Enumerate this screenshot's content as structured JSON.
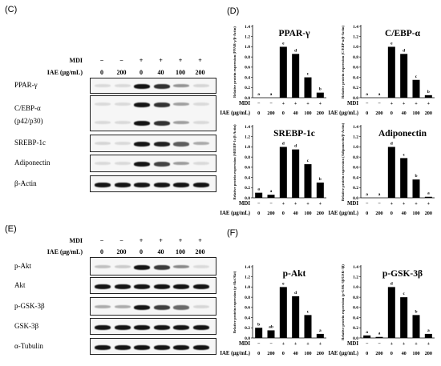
{
  "panels": {
    "c": {
      "letter": "(C)",
      "mdi_label": "MDI",
      "iae_label": "IAE (μg/mL)",
      "mdi": [
        "−",
        "−",
        "+",
        "+",
        "+",
        "+"
      ],
      "iae": [
        "0",
        "200",
        "0",
        "40",
        "100",
        "200"
      ],
      "rows": [
        {
          "label": "PPAR-γ",
          "levels": [
            0,
            0,
            1.0,
            0.86,
            0.4,
            0.1
          ]
        },
        {
          "label": "C/EBP-α",
          "sublabel": "(p42/p30)",
          "levels": [
            0,
            0,
            1.0,
            0.86,
            0.35,
            0.05
          ]
        },
        {
          "label": "SREBP-1c",
          "levels": [
            0.1,
            0.06,
            1.0,
            0.95,
            0.66,
            0.3
          ]
        },
        {
          "label": "Adiponectin",
          "levels": [
            0.02,
            0.02,
            1.0,
            0.78,
            0.36,
            0.02
          ]
        },
        {
          "label": "β-Actin",
          "levels": [
            1,
            1,
            1,
            1,
            1,
            1
          ]
        }
      ]
    },
    "d": {
      "letter": "(D)"
    },
    "e": {
      "letter": "(E)",
      "mdi_label": "MDI",
      "iae_label": "IAE (μg/mL)",
      "mdi": [
        "−",
        "−",
        "+",
        "+",
        "+",
        "+"
      ],
      "iae": [
        "0",
        "200",
        "0",
        "40",
        "100",
        "200"
      ],
      "rows": [
        {
          "label": "p-Akt",
          "levels": [
            0.2,
            0.15,
            1.0,
            0.82,
            0.45,
            0.08
          ]
        },
        {
          "label": "Akt",
          "levels": [
            1,
            1,
            1,
            1,
            1,
            1
          ]
        },
        {
          "label": "p-GSK-3β",
          "levels": [
            0.3,
            0.3,
            1.0,
            0.8,
            0.6,
            0.1
          ]
        },
        {
          "label": "GSK-3β",
          "levels": [
            1,
            1,
            1,
            1,
            1,
            1
          ]
        },
        {
          "label": "α-Tubulin",
          "levels": [
            1,
            1,
            1,
            1,
            1,
            1
          ]
        }
      ]
    },
    "f": {
      "letter": "(F)"
    }
  },
  "chart_data": [
    {
      "type": "bar",
      "panel": "D",
      "title": "PPAR-γ",
      "ylabel": "Relative protein expression (PPAR-γ/β-Actin)",
      "ylim": [
        0,
        1.4
      ],
      "yticks": [
        "0.0",
        "0.2",
        "0.4",
        "0.6",
        "0.8",
        "1.0",
        "1.2",
        "1.4"
      ],
      "values": [
        0.0,
        0.0,
        1.0,
        0.86,
        0.4,
        0.1
      ],
      "letters": [
        "a",
        "a",
        "e",
        "d",
        "c",
        "b"
      ],
      "mdi": [
        "−",
        "−",
        "+",
        "+",
        "+",
        "+"
      ],
      "iae": [
        "0",
        "200",
        "0",
        "40",
        "100",
        "200"
      ],
      "mdi_label": "MDI",
      "iae_label": "IAE (μg/mL)"
    },
    {
      "type": "bar",
      "panel": "D",
      "title": "C/EBP-α",
      "ylabel": "Relative protein expression (C/EBP-α/β-Actin)",
      "ylim": [
        0,
        1.4
      ],
      "yticks": [
        "0.0",
        "0.2",
        "0.4",
        "0.6",
        "0.8",
        "1.0",
        "1.2",
        "1.4"
      ],
      "values": [
        0.0,
        0.0,
        1.0,
        0.86,
        0.35,
        0.05
      ],
      "letters": [
        "a",
        "a",
        "e",
        "d",
        "c",
        "b"
      ],
      "mdi": [
        "−",
        "−",
        "+",
        "+",
        "+",
        "+"
      ],
      "iae": [
        "0",
        "200",
        "0",
        "40",
        "100",
        "200"
      ],
      "mdi_label": "MDI",
      "iae_label": "IAE (μg/mL)"
    },
    {
      "type": "bar",
      "panel": "D",
      "title": "SREBP-1c",
      "ylabel": "Relative protein expression (SREBP-1c/β-Actin)",
      "ylim": [
        0,
        1.4
      ],
      "yticks": [
        "0.0",
        "0.2",
        "0.4",
        "0.6",
        "0.8",
        "1.0",
        "1.2",
        "1.4"
      ],
      "values": [
        0.1,
        0.06,
        1.0,
        0.95,
        0.66,
        0.3
      ],
      "letters": [
        "a",
        "a",
        "d",
        "d",
        "c",
        "b"
      ],
      "mdi": [
        "−",
        "−",
        "+",
        "+",
        "+",
        "+"
      ],
      "iae": [
        "0",
        "200",
        "0",
        "40",
        "100",
        "200"
      ],
      "mdi_label": "MDI",
      "iae_label": "IAE (μg/mL)"
    },
    {
      "type": "bar",
      "panel": "D",
      "title": "Adiponectin",
      "ylabel": "Relative protein expression (Adiponectin/β-Actin)",
      "ylim": [
        0,
        1.4
      ],
      "yticks": [
        "0.0",
        "0.2",
        "0.4",
        "0.6",
        "0.8",
        "1.0",
        "1.2",
        "1.4"
      ],
      "values": [
        0.0,
        0.0,
        1.0,
        0.78,
        0.36,
        0.02
      ],
      "letters": [
        "a",
        "a",
        "d",
        "c",
        "b",
        "a"
      ],
      "mdi": [
        "−",
        "−",
        "+",
        "+",
        "+",
        "+"
      ],
      "iae": [
        "0",
        "200",
        "0",
        "40",
        "100",
        "200"
      ],
      "mdi_label": "MDI",
      "iae_label": "IAE (μg/mL)"
    },
    {
      "type": "bar",
      "panel": "F",
      "title": "p-Akt",
      "ylabel": "Relative protein expression (p-Akt/Akt)",
      "ylim": [
        0,
        1.4
      ],
      "yticks": [
        "0.0",
        "0.2",
        "0.4",
        "0.6",
        "0.8",
        "1.0",
        "1.2",
        "1.4"
      ],
      "values": [
        0.2,
        0.15,
        1.0,
        0.82,
        0.45,
        0.08
      ],
      "letters": [
        "b",
        "ab",
        "e",
        "d",
        "c",
        "a"
      ],
      "mdi": [
        "−",
        "−",
        "+",
        "+",
        "+",
        "+"
      ],
      "iae": [
        "0",
        "200",
        "0",
        "40",
        "100",
        "200"
      ],
      "mdi_label": "MDI",
      "iae_label": "IAE (μg/mL)"
    },
    {
      "type": "bar",
      "panel": "F",
      "title": "p-GSK-3β",
      "ylabel": "Relative protein expression (p-GSK-3β/GSK-3β)",
      "ylim": [
        0,
        1.4
      ],
      "yticks": [
        "0.0",
        "0.2",
        "0.4",
        "0.6",
        "0.8",
        "1.0",
        "1.2",
        "1.4"
      ],
      "values": [
        0.05,
        0.02,
        1.0,
        0.8,
        0.45,
        0.08
      ],
      "letters": [
        "a",
        "a",
        "d",
        "c",
        "b",
        "a"
      ],
      "mdi": [
        "−",
        "−",
        "+",
        "+",
        "+",
        "+"
      ],
      "iae": [
        "0",
        "200",
        "0",
        "40",
        "100",
        "200"
      ],
      "mdi_label": "MDI",
      "iae_label": "IAE (μg/mL)"
    }
  ]
}
